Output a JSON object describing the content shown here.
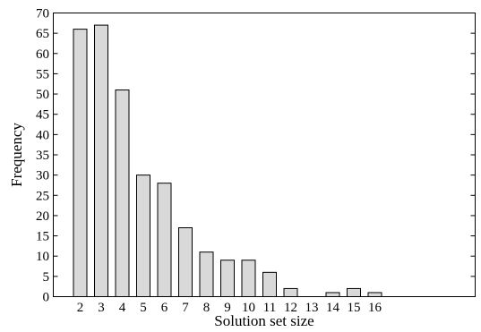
{
  "chart_data": {
    "type": "bar",
    "title": "",
    "xlabel": "Solution set size",
    "ylabel": "Frequency",
    "categories": [
      "2",
      "3",
      "4",
      "5",
      "6",
      "7",
      "8",
      "9",
      "10",
      "11",
      "12",
      "13",
      "14",
      "15",
      "16"
    ],
    "values": [
      66,
      67,
      51,
      30,
      28,
      17,
      11,
      9,
      9,
      6,
      2,
      0,
      1,
      2,
      1
    ],
    "ylim": [
      0,
      70
    ],
    "yticks": [
      0,
      5,
      10,
      15,
      20,
      25,
      30,
      35,
      40,
      45,
      50,
      55,
      60,
      65,
      70
    ],
    "grid": false,
    "legend": "none",
    "bar_color": "#d9d9d9",
    "edge_color": "#000000"
  }
}
